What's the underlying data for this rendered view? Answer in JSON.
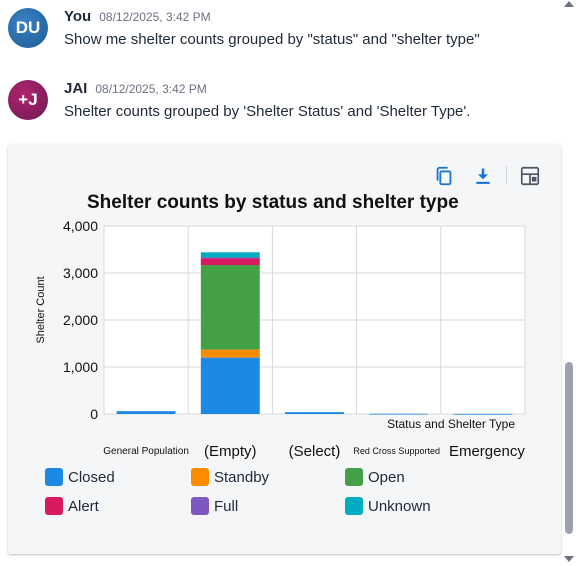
{
  "messages": [
    {
      "avatar_text": "DU",
      "sender": "You",
      "time": "08/12/2025, 3:42 PM",
      "text": "Show me shelter counts grouped by \"status\" and \"shelter type\""
    },
    {
      "avatar_text": "+J",
      "sender": "JAI",
      "time": "08/12/2025, 3:42 PM",
      "text": "Shelter counts grouped by 'Shelter Status' and 'Shelter Type'."
    }
  ],
  "toolbar": {
    "copy_icon": "copy-icon",
    "download_icon": "download-icon",
    "layout_icon": "layout-toggle-icon"
  },
  "chart_data": {
    "type": "bar",
    "stacked": true,
    "title": "Shelter counts by status and shelter type",
    "xlabel": "Status and Shelter Type",
    "ylabel": "Shelter Count",
    "ylim": [
      0,
      4000
    ],
    "yticks": [
      "0",
      "1,000",
      "2,000",
      "3,000",
      "4,000"
    ],
    "yticks_values": [
      0,
      1000,
      2000,
      3000,
      4000
    ],
    "grid": true,
    "legend_position": "bottom",
    "categories": [
      "General Population",
      "(Empty)",
      "(Select)",
      "Red Cross Supported",
      "Emergency"
    ],
    "series": [
      {
        "name": "Closed",
        "color": "#1e88e5",
        "values": [
          60,
          1200,
          40,
          5,
          3
        ]
      },
      {
        "name": "Standby",
        "color": "#fb8c00",
        "values": [
          0,
          170,
          0,
          0,
          0
        ]
      },
      {
        "name": "Open",
        "color": "#43a047",
        "values": [
          0,
          1800,
          0,
          0,
          0
        ]
      },
      {
        "name": "Alert",
        "color": "#d81b60",
        "values": [
          0,
          140,
          0,
          0,
          0
        ]
      },
      {
        "name": "Full",
        "color": "#7e57c2",
        "values": [
          0,
          20,
          0,
          0,
          0
        ]
      },
      {
        "name": "Unknown",
        "color": "#00acc1",
        "values": [
          0,
          110,
          0,
          0,
          0
        ]
      }
    ]
  }
}
